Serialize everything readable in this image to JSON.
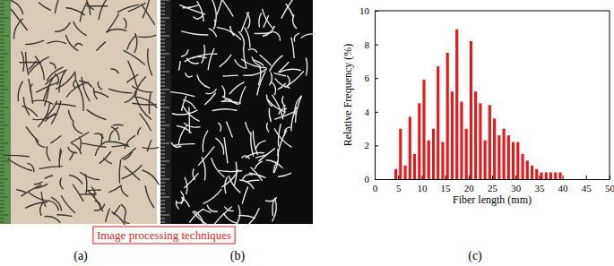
{
  "figure": {
    "labels": [
      "(a)",
      "(b)",
      "(c)"
    ],
    "annotation": "Image processing techniques"
  },
  "chart_data": {
    "type": "histogram",
    "x_label": "Fiber length (mm)",
    "y_label": "Relative Frequency (%)",
    "bins": [
      4,
      5,
      6,
      7,
      8,
      9,
      10,
      11,
      12,
      13,
      14,
      15,
      16,
      17,
      18,
      19,
      20,
      21,
      22,
      23,
      24,
      25,
      26,
      27,
      28,
      29,
      30,
      31,
      32,
      33,
      34,
      35,
      36,
      37,
      38,
      39,
      40
    ],
    "values": [
      0.6,
      3.0,
      0.8,
      3.7,
      1.5,
      4.5,
      5.9,
      2.3,
      3.0,
      6.7,
      2.2,
      7.5,
      5.2,
      8.9,
      4.6,
      3.0,
      8.2,
      5.2,
      4.5,
      2.3,
      4.4,
      3.6,
      2.6,
      3.0,
      2.6,
      2.2,
      2.2,
      1.5,
      1.1,
      0.8,
      0.6,
      0.4,
      0.4,
      0.4,
      0.4,
      0.4
    ],
    "color": "#e31a1c",
    "xlim": [
      0,
      50
    ],
    "xticks": [
      0,
      5,
      10,
      15,
      20,
      25,
      30,
      35,
      40,
      45,
      50
    ],
    "ylim": [
      0,
      10
    ],
    "yticks": [
      0,
      2,
      4,
      6,
      8,
      10
    ],
    "grid": false
  }
}
